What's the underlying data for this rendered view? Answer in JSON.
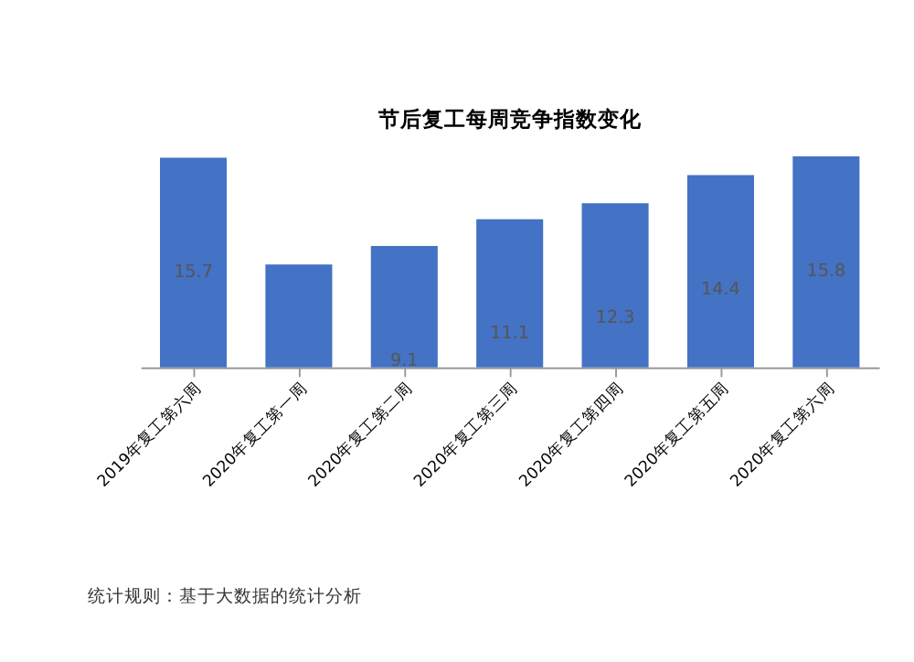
{
  "chart_data": {
    "type": "bar",
    "title": "节后复工每周竞争指数变化",
    "categories": [
      "2019年复工第六周",
      "2020年复工第一周",
      "2020年复工第二周",
      "2020年复工第三周",
      "2020年复工第四周",
      "2020年复工第五周",
      "2020年复工第六周"
    ],
    "values": [
      15.7,
      7.7,
      9.1,
      11.1,
      12.3,
      14.4,
      15.8
    ],
    "value_labels": [
      "15.7",
      null,
      "9.1",
      "11.1",
      "12.3",
      "14.4",
      "15.8"
    ],
    "color": "#4472c4",
    "grid": false,
    "annotations": [
      "统计规则：基于大数据的统计分析"
    ]
  }
}
